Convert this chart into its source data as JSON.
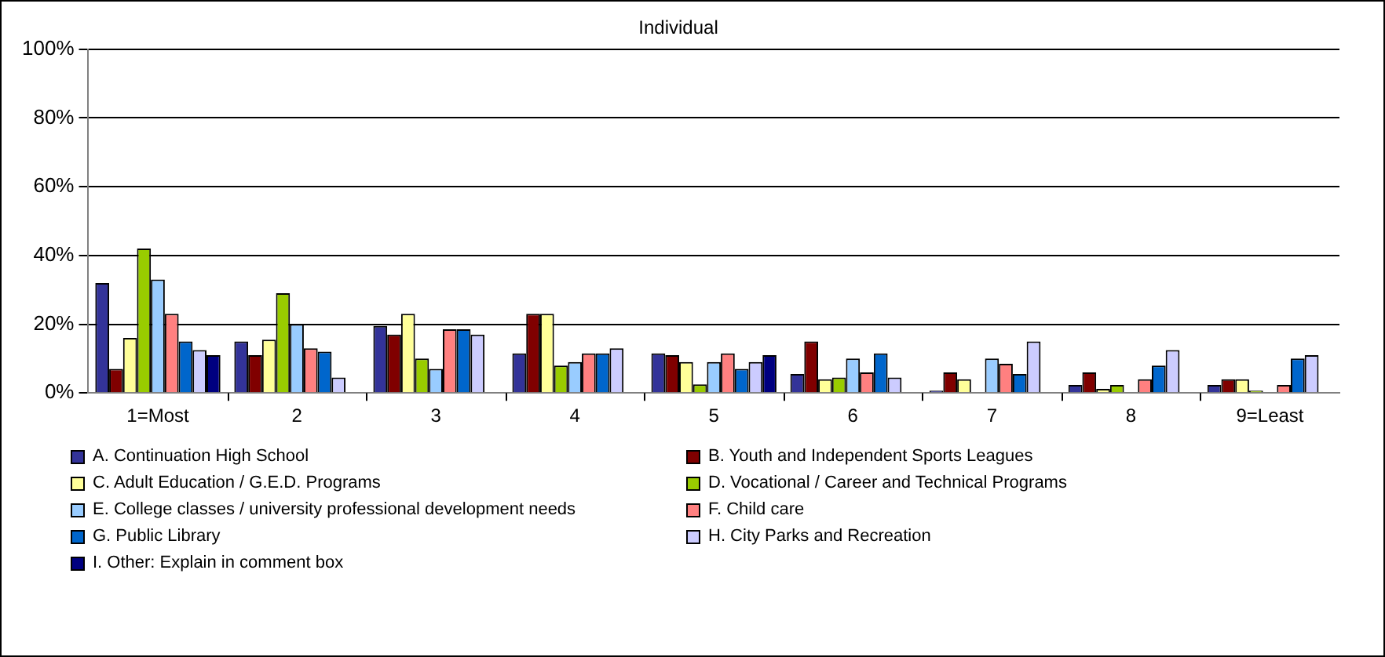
{
  "chart_data": {
    "type": "bar",
    "title": "Individual",
    "categories": [
      "1=Most",
      "2",
      "3",
      "4",
      "5",
      "6",
      "7",
      "8",
      "9=Least"
    ],
    "ylim": [
      0,
      100
    ],
    "yticks": [
      {
        "value": 0,
        "label": "0%"
      },
      {
        "value": 20,
        "label": "20%"
      },
      {
        "value": 40,
        "label": "40%"
      },
      {
        "value": 60,
        "label": "60%"
      },
      {
        "value": 80,
        "label": "80%"
      },
      {
        "value": 100,
        "label": "100%"
      }
    ],
    "grid": "y",
    "legend": "bottom",
    "series": [
      {
        "name": "A. Continuation High School",
        "color": "#333399",
        "values": [
          32,
          15,
          19.5,
          11.5,
          11.5,
          5.5,
          0.7,
          2.3,
          2.3
        ]
      },
      {
        "name": "B. Youth and Independent Sports Leagues",
        "color": "#800000",
        "values": [
          7,
          11,
          17,
          23,
          11,
          15,
          6,
          6,
          4
        ]
      },
      {
        "name": "C. Adult Education / G.E.D. Programs",
        "color": "#ffff99",
        "values": [
          16,
          15.5,
          23,
          23,
          9,
          4,
          4,
          1.2,
          4
        ]
      },
      {
        "name": "D. Vocational / Career and Technical Programs",
        "color": "#99cc00",
        "values": [
          42,
          29,
          10,
          8,
          2.5,
          4.5,
          0,
          2.3,
          0.7
        ]
      },
      {
        "name": "E. College classes / university professional development needs",
        "color": "#99ccff",
        "values": [
          33,
          20,
          7,
          9,
          9,
          10,
          10,
          0,
          0
        ]
      },
      {
        "name": "F. Child care",
        "color": "#ff8080",
        "values": [
          23,
          13,
          18.5,
          11.5,
          11.5,
          6,
          8.5,
          4,
          2.3
        ]
      },
      {
        "name": "G. Public Library",
        "color": "#0066cc",
        "values": [
          15,
          12,
          18.5,
          11.5,
          7,
          11.5,
          5.5,
          8,
          10
        ]
      },
      {
        "name": "H. City Parks and Recreation",
        "color": "#ccccff",
        "values": [
          12.5,
          4.5,
          17,
          13,
          9,
          4.5,
          15,
          12.5,
          11
        ]
      },
      {
        "name": "I. Other: Explain in comment box",
        "color": "#000080",
        "values": [
          11,
          0,
          0,
          0,
          11,
          0,
          0,
          0,
          null
        ]
      }
    ]
  }
}
